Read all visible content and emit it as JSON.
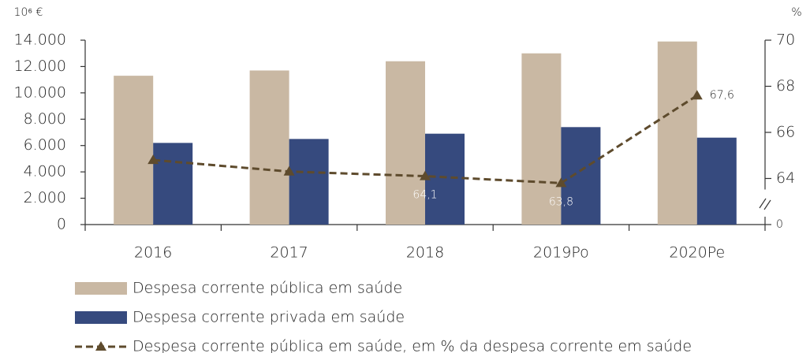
{
  "chart_data": {
    "type": "bar_line",
    "y_label": "10⁶ €",
    "y2_label": "%",
    "categories": [
      "2016",
      "2017",
      "2018",
      "2019Po",
      "2020Pe"
    ],
    "series": [
      {
        "name": "Despesa corrente pública em saúde",
        "type": "bar",
        "color": "#c9b8a3",
        "values": [
          11300,
          11700,
          12400,
          13000,
          13900
        ]
      },
      {
        "name": "Despesa corrente privada em saúde",
        "type": "bar",
        "color": "#364a7e",
        "values": [
          6200,
          6500,
          6900,
          7400,
          6600
        ]
      },
      {
        "name": "Despesa corrente pública em saúde, em % da despesa corrente em saúde",
        "type": "line",
        "axis": "y2",
        "color": "#5e4b2d",
        "dashed": true,
        "marker": "triangle",
        "values": [
          64.8,
          64.3,
          64.1,
          63.8,
          67.6
        ],
        "value_labels": [
          null,
          null,
          "64,1",
          "63,8",
          "67,6"
        ]
      }
    ],
    "ylim": [
      0,
      14000
    ],
    "yticks": [
      0,
      {
        "value": 2000,
        "label": "2.000"
      },
      {
        "value": 4000,
        "label": "4.000"
      },
      {
        "value": 6000,
        "label": "6.000"
      },
      {
        "value": 8000,
        "label": "8.000"
      },
      {
        "value": 10000,
        "label": "10.000"
      },
      {
        "value": 12000,
        "label": "12.000"
      },
      {
        "value": 14000,
        "label": "14.000"
      }
    ],
    "y2lim": [
      62,
      70
    ],
    "y2ticks": [
      64,
      66,
      68,
      70
    ],
    "y2_break": true,
    "y2_break_label": "0",
    "grid": false
  }
}
